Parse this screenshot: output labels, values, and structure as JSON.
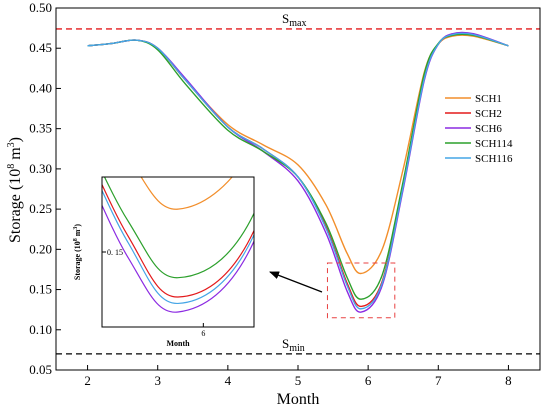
{
  "chart_data": {
    "type": "line",
    "xlabel": "Month",
    "ylabel_main": "Storage (10",
    "ylabel_exp": "8",
    "ylabel_mid": " m",
    "ylabel_exp2": "3",
    "ylabel_end": ")",
    "xlim": [
      1.55,
      8.45
    ],
    "ylim": [
      0.05,
      0.5
    ],
    "xticks": [
      "2",
      "3",
      "4",
      "5",
      "6",
      "7",
      "8"
    ],
    "yticks": [
      "0.05",
      "0.10",
      "0.15",
      "0.20",
      "0.25",
      "0.30",
      "0.35",
      "0.40",
      "0.45",
      "0.50"
    ],
    "legend_position": "right",
    "reference_lines": [
      {
        "name": "S",
        "sub": "max",
        "value": 0.474,
        "color": "#e31a1c"
      },
      {
        "name": "S",
        "sub": "min",
        "value": 0.07,
        "color": "#000000"
      }
    ],
    "series": [
      {
        "name": "SCH1",
        "color": "#f28e2b",
        "x": [
          2,
          2.35,
          2.7,
          3.0,
          3.4,
          4.0,
          4.5,
          5.0,
          5.4,
          5.7,
          5.9,
          6.2,
          6.5,
          6.8,
          7.0,
          7.2,
          7.5,
          8.0
        ],
        "y": [
          0.453,
          0.456,
          0.46,
          0.45,
          0.41,
          0.355,
          0.33,
          0.305,
          0.255,
          0.195,
          0.17,
          0.2,
          0.3,
          0.42,
          0.455,
          0.465,
          0.465,
          0.453
        ]
      },
      {
        "name": "SCH2",
        "color": "#e31a1c",
        "x": [
          2,
          2.35,
          2.7,
          3.0,
          3.4,
          4.0,
          4.5,
          5.0,
          5.4,
          5.7,
          5.9,
          6.2,
          6.5,
          6.8,
          7.0,
          7.2,
          7.5,
          8.0
        ],
        "y": [
          0.453,
          0.456,
          0.46,
          0.45,
          0.41,
          0.352,
          0.325,
          0.29,
          0.228,
          0.158,
          0.129,
          0.16,
          0.28,
          0.415,
          0.455,
          0.467,
          0.467,
          0.453
        ]
      },
      {
        "name": "SCH6",
        "color": "#8c2be2",
        "x": [
          2,
          2.35,
          2.7,
          3.0,
          3.4,
          4.0,
          4.5,
          5.0,
          5.4,
          5.7,
          5.9,
          6.2,
          6.5,
          6.8,
          7.0,
          7.2,
          7.5,
          8.0
        ],
        "y": [
          0.453,
          0.456,
          0.46,
          0.45,
          0.412,
          0.352,
          0.322,
          0.285,
          0.22,
          0.148,
          0.122,
          0.155,
          0.275,
          0.41,
          0.455,
          0.468,
          0.468,
          0.453
        ]
      },
      {
        "name": "SCH114",
        "color": "#2ca02c",
        "x": [
          2,
          2.35,
          2.7,
          3.0,
          3.4,
          4.0,
          4.5,
          5.0,
          5.4,
          5.7,
          5.9,
          6.2,
          6.5,
          6.8,
          7.0,
          7.2,
          7.5,
          8.0
        ],
        "y": [
          0.453,
          0.456,
          0.46,
          0.448,
          0.405,
          0.348,
          0.322,
          0.29,
          0.232,
          0.165,
          0.138,
          0.168,
          0.285,
          0.418,
          0.456,
          0.466,
          0.466,
          0.453
        ]
      },
      {
        "name": "SCH116",
        "color": "#45a5e6",
        "x": [
          2,
          2.35,
          2.7,
          3.0,
          3.4,
          4.0,
          4.5,
          5.0,
          5.4,
          5.7,
          5.9,
          6.2,
          6.5,
          6.8,
          7.0,
          7.2,
          7.5,
          8.0
        ],
        "y": [
          0.453,
          0.456,
          0.46,
          0.45,
          0.41,
          0.352,
          0.325,
          0.29,
          0.226,
          0.155,
          0.126,
          0.158,
          0.278,
          0.412,
          0.455,
          0.467,
          0.467,
          0.453
        ]
      }
    ],
    "zoom_box": {
      "x": [
        5.42,
        6.38
      ],
      "y": [
        0.115,
        0.183
      ]
    },
    "inset": {
      "xlabel": "Month",
      "ylabel": "Storage (10",
      "ylabel_exp": "8",
      "ylabel_mid": " m",
      "ylabel_exp2": "3",
      "ylabel_end": ")",
      "xlim": [
        5.6,
        6.2
      ],
      "ylim": [
        0.115,
        0.185
      ],
      "xtick_label": "6",
      "xtick_value": 6.0,
      "ytick_label": "0. 15",
      "ytick_value": 0.15
    }
  }
}
